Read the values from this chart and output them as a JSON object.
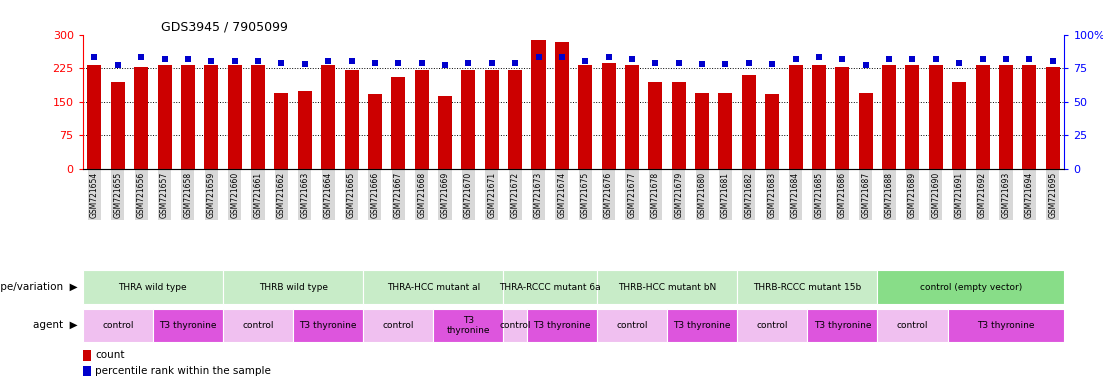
{
  "title": "GDS3945 / 7905099",
  "samples": [
    "GSM721654",
    "GSM721655",
    "GSM721656",
    "GSM721657",
    "GSM721658",
    "GSM721659",
    "GSM721660",
    "GSM721661",
    "GSM721662",
    "GSM721663",
    "GSM721664",
    "GSM721665",
    "GSM721666",
    "GSM721667",
    "GSM721668",
    "GSM721669",
    "GSM721670",
    "GSM721671",
    "GSM721672",
    "GSM721673",
    "GSM721674",
    "GSM721675",
    "GSM721676",
    "GSM721677",
    "GSM721678",
    "GSM721679",
    "GSM721680",
    "GSM721681",
    "GSM721682",
    "GSM721683",
    "GSM721684",
    "GSM721685",
    "GSM721686",
    "GSM721687",
    "GSM721688",
    "GSM721689",
    "GSM721690",
    "GSM721691",
    "GSM721692",
    "GSM721693",
    "GSM721694",
    "GSM721695"
  ],
  "count_values": [
    232,
    194,
    228,
    232,
    232,
    232,
    232,
    232,
    170,
    175,
    232,
    222,
    168,
    205,
    220,
    163,
    220,
    222,
    222,
    288,
    283,
    232,
    237,
    232,
    195,
    193,
    170,
    170,
    210,
    168,
    232,
    232,
    228,
    170,
    232,
    232,
    232,
    195,
    232,
    232,
    232,
    228
  ],
  "percentile_values": [
    83,
    77,
    83,
    82,
    82,
    80,
    80,
    80,
    79,
    78,
    80,
    80,
    79,
    79,
    79,
    77,
    79,
    79,
    79,
    83,
    83,
    80,
    83,
    82,
    79,
    79,
    78,
    78,
    79,
    78,
    82,
    83,
    82,
    77,
    82,
    82,
    82,
    79,
    82,
    82,
    82,
    80
  ],
  "left_ylim": [
    0,
    300
  ],
  "right_ylim": [
    0,
    100
  ],
  "left_yticks": [
    0,
    75,
    150,
    225,
    300
  ],
  "right_yticks": [
    0,
    25,
    50,
    75,
    100
  ],
  "bar_color": "#cc0000",
  "dot_color": "#0000cc",
  "bar_width": 0.6,
  "genotype_groups": [
    {
      "label": "THRA wild type",
      "start": 0,
      "end": 5,
      "color": "#c8ecc8"
    },
    {
      "label": "THRB wild type",
      "start": 6,
      "end": 11,
      "color": "#c8ecc8"
    },
    {
      "label": "THRA-HCC mutant al",
      "start": 12,
      "end": 17,
      "color": "#c8ecc8"
    },
    {
      "label": "THRA-RCCC mutant 6a",
      "start": 18,
      "end": 21,
      "color": "#c8ecc8"
    },
    {
      "label": "THRB-HCC mutant bN",
      "start": 22,
      "end": 27,
      "color": "#c8ecc8"
    },
    {
      "label": "THRB-RCCC mutant 15b",
      "start": 28,
      "end": 33,
      "color": "#c8ecc8"
    },
    {
      "label": "control (empty vector)",
      "start": 34,
      "end": 41,
      "color": "#88dd88"
    }
  ],
  "agent_groups": [
    {
      "label": "control",
      "start": 0,
      "end": 2,
      "color": "#f0c0f0"
    },
    {
      "label": "T3 thyronine",
      "start": 3,
      "end": 5,
      "color": "#dd55dd"
    },
    {
      "label": "control",
      "start": 6,
      "end": 8,
      "color": "#f0c0f0"
    },
    {
      "label": "T3 thyronine",
      "start": 9,
      "end": 11,
      "color": "#dd55dd"
    },
    {
      "label": "control",
      "start": 12,
      "end": 14,
      "color": "#f0c0f0"
    },
    {
      "label": "T3\nthyronine",
      "start": 15,
      "end": 17,
      "color": "#dd55dd"
    },
    {
      "label": "control",
      "start": 18,
      "end": 18,
      "color": "#f0c0f0"
    },
    {
      "label": "T3 thyronine",
      "start": 19,
      "end": 21,
      "color": "#dd55dd"
    },
    {
      "label": "control",
      "start": 22,
      "end": 24,
      "color": "#f0c0f0"
    },
    {
      "label": "T3 thyronine",
      "start": 25,
      "end": 27,
      "color": "#dd55dd"
    },
    {
      "label": "control",
      "start": 28,
      "end": 30,
      "color": "#f0c0f0"
    },
    {
      "label": "T3 thyronine",
      "start": 31,
      "end": 33,
      "color": "#dd55dd"
    },
    {
      "label": "control",
      "start": 34,
      "end": 36,
      "color": "#f0c0f0"
    },
    {
      "label": "T3 thyronine",
      "start": 37,
      "end": 41,
      "color": "#dd55dd"
    }
  ],
  "legend_count_color": "#cc0000",
  "legend_dot_color": "#0000cc"
}
